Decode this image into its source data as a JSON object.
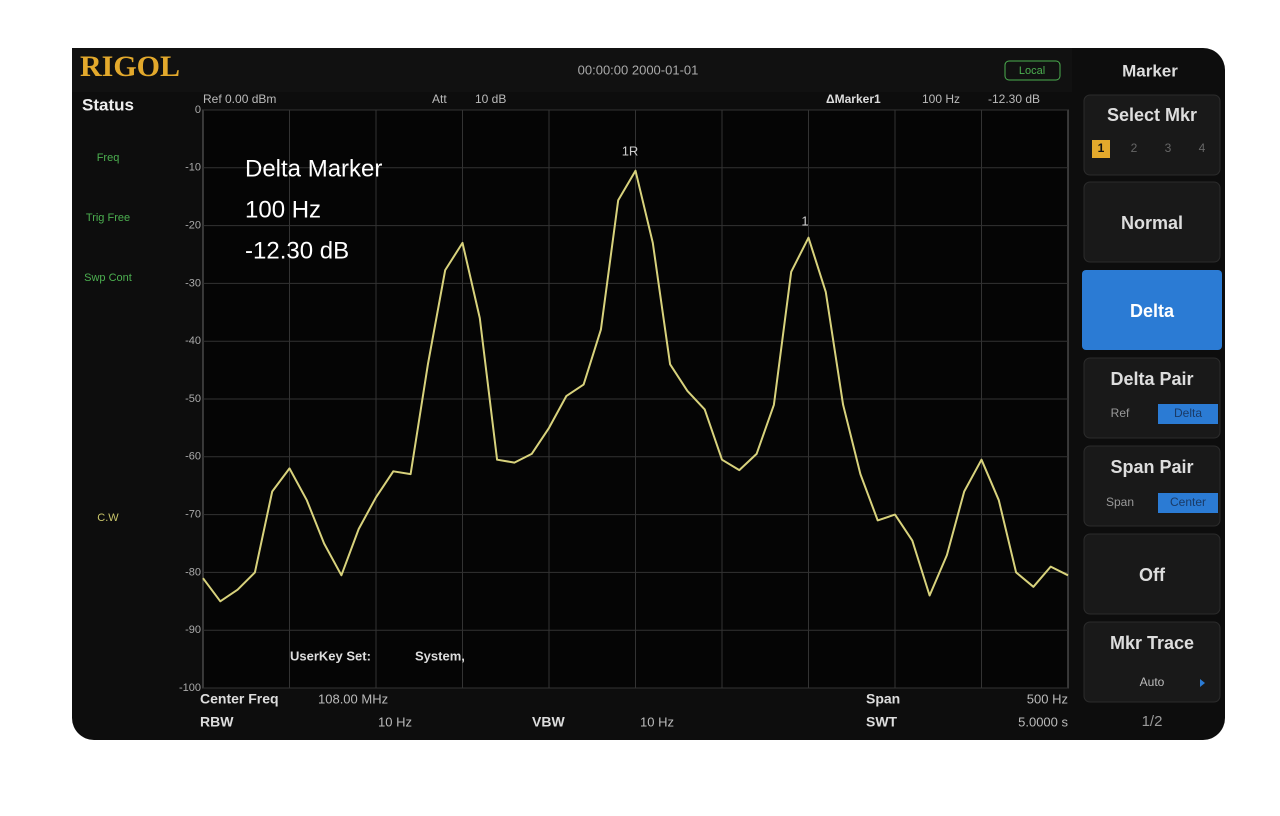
{
  "header": {
    "logo": "RIGOL",
    "datetime": "00:00:00 2000-01-01",
    "mode": "Local"
  },
  "status": {
    "title": "Status",
    "items": [
      "Freq",
      "Trig Free",
      "Swp Cont",
      "C.W"
    ]
  },
  "plot": {
    "ref": "Ref 0.00 dBm",
    "att_label": "Att",
    "att": "10 dB",
    "marker_label": "ΔMarker1",
    "marker_freq": "100 Hz",
    "marker_level": "-12.30 dB",
    "ylim": [
      -100,
      0
    ],
    "yticks": [
      0,
      -10,
      -20,
      -30,
      -40,
      -50,
      -60,
      -70,
      -80,
      -90,
      -100
    ],
    "grid": true,
    "trace": {
      "color": "#d8d27c",
      "values": [
        -81,
        -85,
        -83,
        -80,
        -66,
        -62,
        -67.5,
        -75,
        -80.5,
        -72.5,
        -67,
        -62.5,
        -63,
        -44,
        -27.7,
        -23,
        -36,
        -60.5,
        -61,
        -59.5,
        -55,
        -49.5,
        -47.5,
        -38,
        -15.6,
        -10.5,
        -23,
        -44,
        -48.6,
        -51.8,
        -60.5,
        -62.3,
        -59.5,
        -51,
        -28,
        -22.1,
        -31.5,
        -51,
        -63,
        -71,
        -70,
        -74.5,
        -84,
        -77,
        -66,
        -60.5,
        -67.5,
        -80,
        -82.5,
        -79,
        -80.5
      ]
    },
    "marker_ref": "1R",
    "marker_delta": "1",
    "annotation": [
      "Delta Marker",
      "100 Hz",
      "-12.30 dB"
    ],
    "userkey": "UserKey Set:",
    "userkey_value": "System,"
  },
  "footer": {
    "center_freq_label": "Center Freq",
    "center_freq": "108.00 MHz",
    "span_label": "Span",
    "span": "500 Hz",
    "rbw_label": "RBW",
    "rbw": "10 Hz",
    "vbw_label": "VBW",
    "vbw": "10 Hz",
    "swt_label": "SWT",
    "swt": "5.0000 s"
  },
  "menu": {
    "title": "Marker",
    "select": "Select Mkr",
    "select_items": [
      "1",
      "2",
      "3",
      "4"
    ],
    "normal": "Normal",
    "delta": "Delta",
    "delta_pair": "Delta Pair",
    "delta_pair_options": [
      "Ref",
      "Delta"
    ],
    "span_pair": "Span Pair",
    "span_pair_options": [
      "Span",
      "Center"
    ],
    "off": "Off",
    "mkr_trace": "Mkr Trace",
    "mkr_trace_value": "Auto",
    "page": "1/2"
  }
}
